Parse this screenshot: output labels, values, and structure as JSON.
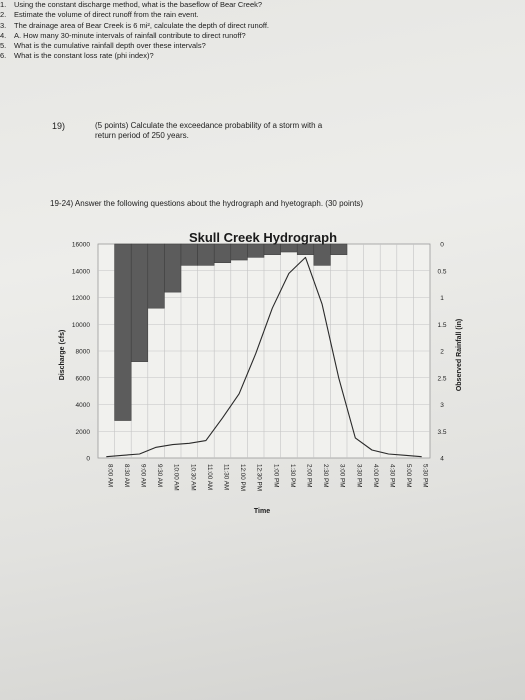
{
  "question19": {
    "number": "19)",
    "line1": "(5 points) Calculate the exceedance probability of a storm with a",
    "line2": "return period of 250 years."
  },
  "section_heading": "19-24) Answer the following questions about the hydrograph and hyetograph. (30 points)",
  "chart_data": {
    "type": "line",
    "title": "Skull Creek Hydrograph",
    "xlabel": "Time",
    "ylabel": "Discharge (cfs)",
    "y2label": "Observed Rainfall (in)",
    "ylim": [
      0,
      16000
    ],
    "y2lim": [
      0,
      4
    ],
    "y2_inverted": true,
    "y_ticks": [
      "16000",
      "14000",
      "12000",
      "10000",
      "8000",
      "6000",
      "4000",
      "2000",
      "0"
    ],
    "y2_ticks": [
      "0",
      "0.5",
      "1",
      "1.5",
      "2",
      "2.5",
      "3",
      "3.5",
      "4"
    ],
    "categories": [
      "8:00 AM",
      "8:30 AM",
      "9:00 AM",
      "9:30 AM",
      "10:00 AM",
      "10:30 AM",
      "11:00 AM",
      "11:30 AM",
      "12:00 PM",
      "12:30 PM",
      "1:00 PM",
      "1:30 PM",
      "2:00 PM",
      "2:30 PM",
      "3:00 PM",
      "3:30 PM",
      "4:00 PM",
      "4:30 PM",
      "5:00 PM",
      "5:30 PM"
    ],
    "series": [
      {
        "kind": "line",
        "axis": "left",
        "values": [
          100,
          200,
          300,
          800,
          1000,
          1100,
          1300,
          3000,
          4800,
          7800,
          11200,
          13800,
          15000,
          11500,
          6000,
          1500,
          600,
          300,
          200,
          100
        ]
      },
      {
        "kind": "bar",
        "axis": "right",
        "color": "#5c5c5c",
        "values": [
          0,
          3.3,
          2.2,
          1.2,
          0.9,
          0.4,
          0.4,
          0.35,
          0.3,
          0.25,
          0.2,
          0.15,
          0.2,
          0.4,
          0.2,
          0,
          0,
          0,
          0,
          0
        ]
      }
    ],
    "grid": true
  },
  "questions": [
    {
      "n": "1.",
      "text": "Using the constant discharge method, what is the baseflow of Bear Creek?"
    },
    {
      "n": "2.",
      "text": "Estimate the volume of direct runoff from the rain event."
    },
    {
      "n": "3.",
      "text": "The drainage area of Bear Creek is 6 mi², calculate the depth of direct runoff."
    },
    {
      "n": "4.",
      "text": "A. How many 30-minute intervals of rainfall contribute to direct runoff?"
    },
    {
      "n": "5.",
      "text": "What is the cumulative rainfall depth over these intervals?"
    },
    {
      "n": "6.",
      "text": "What is the constant loss rate (phi index)?"
    }
  ]
}
